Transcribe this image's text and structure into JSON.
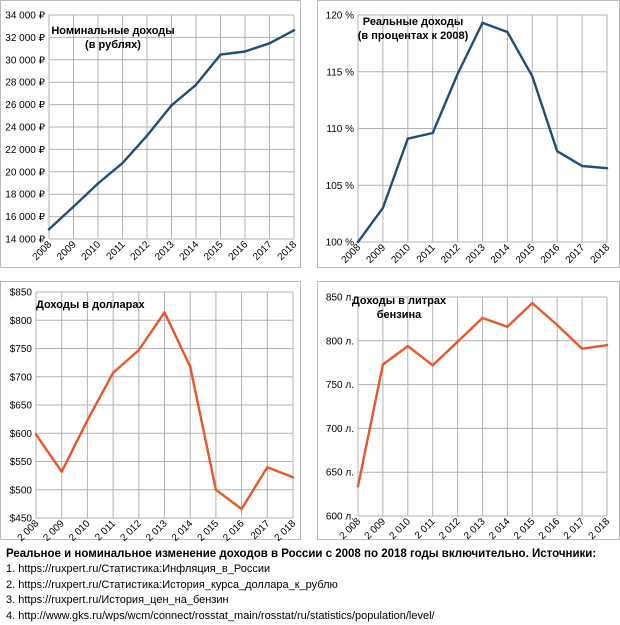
{
  "chart_data": [
    {
      "type": "line",
      "title": "Номинальные доходы\n(в рублях)",
      "xlabel": "",
      "ylabel": "",
      "categories": [
        "2008",
        "2009",
        "2010",
        "2011",
        "2012",
        "2013",
        "2014",
        "2015",
        "2016",
        "2017",
        "2018"
      ],
      "series": [
        {
          "values": [
            14864,
            16895,
            18958,
            20780,
            23221,
            25928,
            27766,
            30467,
            30744,
            31477,
            32635
          ]
        }
      ],
      "ylim": [
        14000,
        34000
      ],
      "yticks": [
        "14 000 ₽",
        "16 000 ₽",
        "18 000 ₽",
        "20 000 ₽",
        "22 000 ₽",
        "24 000 ₽",
        "26 000 ₽",
        "28 000 ₽",
        "30 000 ₽",
        "32 000 ₽",
        "34 000 ₽"
      ],
      "xticks": [
        "2008",
        "2009",
        "2010",
        "2011",
        "2012",
        "2013",
        "2014",
        "2015",
        "2016",
        "2017",
        "2018"
      ],
      "color": "#1f4e79",
      "grid": true
    },
    {
      "type": "line",
      "title": "Реальные доходы\n(в процентах к 2008)",
      "xlabel": "",
      "ylabel": "",
      "categories": [
        "2008",
        "2009",
        "2010",
        "2011",
        "2012",
        "2013",
        "2014",
        "2015",
        "2016",
        "2017",
        "2018"
      ],
      "series": [
        {
          "values": [
            100,
            103,
            109.1,
            109.6,
            114.8,
            119.3,
            118.5,
            114.6,
            108,
            106.7,
            106.5
          ]
        }
      ],
      "ylim": [
        100,
        120
      ],
      "yticks": [
        "100 %",
        "105 %",
        "110 %",
        "115 %",
        "120 %"
      ],
      "xticks": [
        "2008",
        "2009",
        "2010",
        "2011",
        "2012",
        "2013",
        "2014",
        "2015",
        "2016",
        "2017",
        "2018"
      ],
      "color": "#1f4e79",
      "grid": true
    },
    {
      "type": "line",
      "title": "Доходы в долларах",
      "xlabel": "",
      "ylabel": "",
      "categories": [
        "2008",
        "2009",
        "2010",
        "2011",
        "2012",
        "2013",
        "2014",
        "2015",
        "2016",
        "2017",
        "2018"
      ],
      "series": [
        {
          "values": [
            598,
            532,
            623,
            707,
            747,
            814,
            718,
            500,
            466,
            540,
            522
          ]
        }
      ],
      "ylim": [
        450,
        850
      ],
      "yticks": [
        "$450",
        "$500",
        "$550",
        "$600",
        "$650",
        "$700",
        "$750",
        "$800",
        "$850"
      ],
      "xticks": [
        "2 008",
        "2 009",
        "2 010",
        "2 011",
        "2 012",
        "2 013",
        "2 014",
        "2 015",
        "2 016",
        "2017",
        "2 018"
      ],
      "color": "#e8572a",
      "grid": true
    },
    {
      "type": "line",
      "title": "Доходы в литрах\nбензина",
      "xlabel": "",
      "ylabel": "",
      "categories": [
        "2008",
        "2009",
        "2010",
        "2011",
        "2012",
        "2013",
        "2014",
        "2015",
        "2016",
        "2017",
        "2018"
      ],
      "series": [
        {
          "values": [
            634,
            773,
            794,
            772,
            799,
            826,
            816,
            843,
            818,
            791,
            795
          ]
        }
      ],
      "ylim": [
        600,
        850
      ],
      "yticks": [
        "600 л.",
        "650 л.",
        "700 л.",
        "750 л.",
        "800 л.",
        "850 л."
      ],
      "xticks": [
        "2 008",
        "2 009",
        "2 010",
        "2 011",
        "2 012",
        "2 013",
        "2 014",
        "2 015",
        "2 016",
        "2 017",
        "2 018"
      ],
      "color": "#e8572a",
      "grid": true
    }
  ],
  "caption": {
    "title": "Реальное и номинальное изменение доходов в России с 2008 по 2018 годы включительно. Источники:",
    "sources": [
      "1. https://ruxpert.ru/Статистика:Инфляция_в_России",
      "2. https://ruxpert.ru/Статистика:История_курса_доллара_к_рублю",
      "3. https://ruxpert.ru/История_цен_на_бензин",
      "4. http://www.gks.ru/wps/wcm/connect/rosstat_main/rosstat/ru/statistics/population/level/"
    ]
  }
}
